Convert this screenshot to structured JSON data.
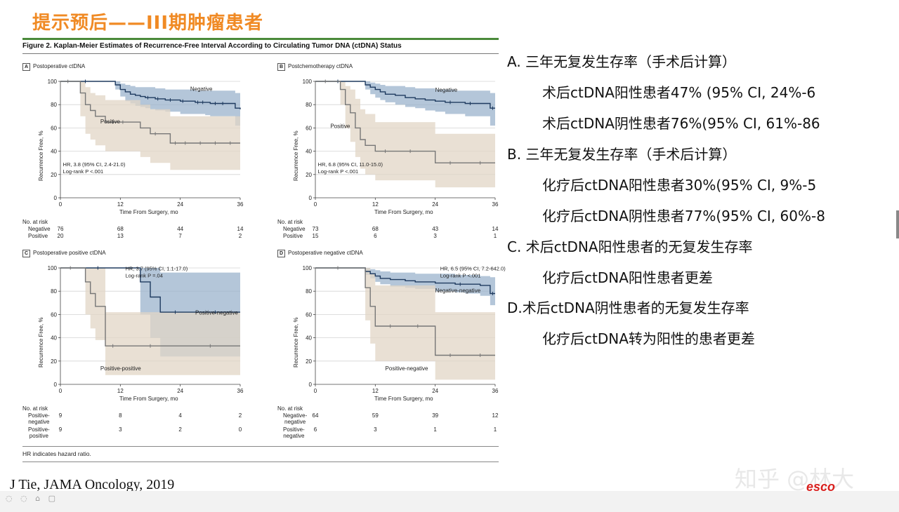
{
  "slide": {
    "title": "提示预后——III期肿瘤患者",
    "figure_caption": "Figure 2. Kaplan-Meier Estimates of Recurrence-Free Interval According to Circulating Tumor DNA (ctDNA) Status",
    "hr_note": "HR indicates hazard ratio.",
    "citation": "J Tie, JAMA Oncology, 2019",
    "watermark": "知乎 @林大",
    "logo": "esco"
  },
  "answers": [
    "A. 三年无复发生存率（手术后计算）",
    "术后ctDNA阳性患者47% (95% CI, 24%-6",
    "术后ctDNA阴性患者76%(95% CI, 61%-86",
    "B. 三年无复发生存率（手术后计算）",
    "化疗后ctDNA阳性患者30%(95% CI, 9%-5",
    "化疗后ctDNA阴性患者77%(95% CI, 60%-8",
    "C. 术后ctDNA阳性患者的无复发生存率",
    "化疗后ctDNA阳性患者更差",
    "D.术后ctDNA阴性患者的无复发生存率",
    "化疗后ctDNA转为阳性的患者更差"
  ],
  "common": {
    "ylabel": "Recurrence Free, %",
    "xlabel": "Time From Surgery, mo",
    "xticks": [
      "0",
      "12",
      "24",
      "36"
    ],
    "yticks": [
      "0",
      "20",
      "40",
      "60",
      "80",
      "100"
    ],
    "at_risk_label": "No. at risk",
    "colors": {
      "blue_line": "#1e3a5f",
      "blue_band": "#9bb3cc",
      "tan_line": "#777777",
      "tan_band": "#e2d5c5"
    }
  },
  "chart_data": [
    {
      "type": "line",
      "panel": "A",
      "title": "Postoperative ctDNA",
      "xlim": [
        0,
        36
      ],
      "ylim": [
        0,
        100
      ],
      "hr_text": "HR, 3.8 (95% CI, 2.4-21.0)",
      "p_text": "Log-rank P <.001",
      "labels": [
        {
          "text": "Negative",
          "series": 0
        },
        {
          "text": "Positive",
          "series": 1
        }
      ],
      "series": [
        {
          "name": "Negative",
          "color": "blue",
          "x": [
            0,
            10,
            11,
            12,
            13,
            14,
            15,
            16,
            17,
            18,
            19,
            20,
            21,
            23,
            24,
            25,
            27,
            28,
            29,
            30,
            32,
            33,
            35,
            36
          ],
          "y": [
            100,
            100,
            97,
            93,
            91,
            89,
            88,
            87,
            86,
            86,
            85,
            85,
            84,
            84,
            83,
            83,
            82,
            82,
            82,
            81,
            81,
            81,
            77,
            76
          ],
          "lo": [
            100,
            100,
            93,
            87,
            83,
            81,
            79,
            78,
            77,
            76,
            75,
            75,
            74,
            74,
            72,
            72,
            72,
            72,
            71,
            70,
            70,
            70,
            62,
            60
          ],
          "hi": [
            100,
            100,
            100,
            98,
            97,
            96,
            95,
            95,
            95,
            95,
            94,
            94,
            93,
            93,
            93,
            93,
            92,
            92,
            92,
            92,
            92,
            92,
            90,
            90
          ]
        },
        {
          "name": "Positive",
          "color": "tan",
          "x": [
            0,
            3,
            4,
            5,
            6,
            7,
            9,
            12,
            13,
            16,
            18,
            20,
            22,
            24,
            26,
            30,
            32,
            36
          ],
          "y": [
            100,
            100,
            90,
            80,
            75,
            70,
            65,
            65,
            65,
            60,
            55,
            55,
            47,
            47,
            47,
            47,
            47,
            47
          ],
          "lo": [
            100,
            100,
            70,
            55,
            50,
            45,
            40,
            40,
            40,
            35,
            30,
            30,
            24,
            24,
            24,
            24,
            24,
            24
          ],
          "hi": [
            100,
            100,
            100,
            95,
            90,
            88,
            84,
            84,
            84,
            80,
            76,
            76,
            70,
            70,
            70,
            70,
            70,
            70
          ]
        }
      ],
      "at_risk": [
        {
          "label": "Negative",
          "values": [
            "76",
            "68",
            "44",
            "14"
          ]
        },
        {
          "label": "Positive",
          "values": [
            "20",
            "13",
            "7",
            "2"
          ]
        }
      ]
    },
    {
      "type": "line",
      "panel": "B",
      "title": "Postchemotherapy ctDNA",
      "xlim": [
        0,
        36
      ],
      "ylim": [
        0,
        100
      ],
      "hr_text": "HR, 6.8 (95% CI, 11.0-15.0)",
      "p_text": "Log-rank P <.001",
      "labels": [
        {
          "text": "Negative",
          "series": 0
        },
        {
          "text": "Positive",
          "series": 1
        }
      ],
      "series": [
        {
          "name": "Negative",
          "color": "blue",
          "x": [
            0,
            9,
            10,
            11,
            12,
            13,
            14,
            16,
            18,
            20,
            22,
            24,
            26,
            28,
            30,
            32,
            35,
            36
          ],
          "y": [
            100,
            100,
            97,
            95,
            93,
            91,
            89,
            88,
            86,
            85,
            84,
            83,
            82,
            82,
            81,
            81,
            77,
            77
          ],
          "lo": [
            100,
            100,
            93,
            89,
            86,
            84,
            82,
            80,
            78,
            77,
            75,
            74,
            72,
            72,
            70,
            70,
            62,
            60
          ],
          "hi": [
            100,
            100,
            100,
            99,
            98,
            97,
            96,
            96,
            95,
            94,
            94,
            93,
            93,
            92,
            92,
            92,
            90,
            90
          ]
        },
        {
          "name": "Positive",
          "color": "tan",
          "x": [
            0,
            4,
            5,
            6,
            7,
            8,
            9,
            10,
            12,
            16,
            22,
            24,
            30,
            36
          ],
          "y": [
            100,
            100,
            93,
            80,
            73,
            60,
            50,
            45,
            40,
            40,
            40,
            30,
            30,
            30
          ],
          "lo": [
            100,
            100,
            80,
            60,
            48,
            35,
            25,
            20,
            15,
            15,
            15,
            9,
            9,
            9
          ],
          "hi": [
            100,
            100,
            100,
            96,
            93,
            85,
            76,
            72,
            65,
            65,
            65,
            55,
            55,
            55
          ]
        }
      ],
      "at_risk": [
        {
          "label": "Negative",
          "values": [
            "73",
            "68",
            "43",
            "14"
          ]
        },
        {
          "label": "Positive",
          "values": [
            "15",
            "6",
            "3",
            "1"
          ]
        }
      ]
    },
    {
      "type": "line",
      "panel": "C",
      "title": "Postoperative positive ctDNA",
      "xlim": [
        0,
        36
      ],
      "ylim": [
        0,
        100
      ],
      "hr_text": "HR, 3.7 (95% CI, 1.1-17.0)",
      "p_text": "Log-rank P =.04",
      "labels": [
        {
          "text": "Positive-negative",
          "series": 0
        },
        {
          "text": "Positive-positive",
          "series": 1
        }
      ],
      "series": [
        {
          "name": "Positive-negative",
          "color": "blue",
          "x": [
            0,
            15,
            16,
            18,
            20,
            26,
            36
          ],
          "y": [
            100,
            100,
            88,
            75,
            62,
            62,
            62
          ],
          "lo": [
            100,
            100,
            60,
            40,
            24,
            24,
            24
          ],
          "hi": [
            100,
            100,
            100,
            100,
            96,
            96,
            96
          ]
        },
        {
          "name": "Positive-positive",
          "color": "tan",
          "x": [
            0,
            4,
            5,
            6,
            7,
            9,
            12,
            24,
            36
          ],
          "y": [
            100,
            100,
            88,
            78,
            67,
            33,
            33,
            33,
            33
          ],
          "lo": [
            100,
            100,
            60,
            48,
            38,
            8,
            8,
            8,
            8
          ],
          "hi": [
            100,
            100,
            100,
            100,
            100,
            62,
            62,
            62,
            62
          ]
        }
      ],
      "at_risk": [
        {
          "label": "Positive-\nnegative",
          "values": [
            "9",
            "8",
            "4",
            "2"
          ]
        },
        {
          "label": "Positive-\npositive",
          "values": [
            "9",
            "3",
            "2",
            "0"
          ]
        }
      ]
    },
    {
      "type": "line",
      "panel": "D",
      "title": "Postoperative negative ctDNA",
      "xlim": [
        0,
        36
      ],
      "ylim": [
        0,
        100
      ],
      "hr_text": "HR, 6.5 (95% CI, 7.2-642.0)",
      "p_text": "Log-rank P <.001",
      "labels": [
        {
          "text": "Negative-negative",
          "series": 0
        },
        {
          "text": "Positive-negative",
          "series": 1
        }
      ],
      "series": [
        {
          "name": "Negative-negative",
          "color": "blue",
          "x": [
            0,
            9,
            10,
            11,
            12,
            13,
            15,
            18,
            20,
            24,
            28,
            30,
            33,
            35,
            36
          ],
          "y": [
            100,
            100,
            97,
            95,
            93,
            91,
            90,
            89,
            88,
            87,
            86,
            86,
            85,
            78,
            78
          ],
          "lo": [
            100,
            100,
            94,
            91,
            88,
            86,
            84,
            83,
            82,
            80,
            79,
            78,
            76,
            68,
            66
          ],
          "hi": [
            100,
            100,
            100,
            99,
            98,
            97,
            96,
            96,
            95,
            95,
            94,
            94,
            93,
            92,
            92
          ]
        },
        {
          "name": "Positive-negative",
          "color": "tan",
          "x": [
            0,
            9,
            10,
            11,
            12,
            18,
            23,
            24,
            30,
            36
          ],
          "y": [
            100,
            100,
            83,
            67,
            50,
            50,
            50,
            25,
            25,
            25
          ],
          "lo": [
            100,
            100,
            55,
            35,
            20,
            20,
            20,
            4,
            4,
            4
          ],
          "hi": [
            100,
            100,
            100,
            95,
            85,
            85,
            85,
            62,
            62,
            62
          ]
        }
      ],
      "at_risk": [
        {
          "label": "Negative-\nnegative",
          "values": [
            "64",
            "59",
            "39",
            "12"
          ]
        },
        {
          "label": "Positive-\nnegative",
          "values": [
            "6",
            "3",
            "1",
            "1"
          ]
        }
      ]
    }
  ]
}
